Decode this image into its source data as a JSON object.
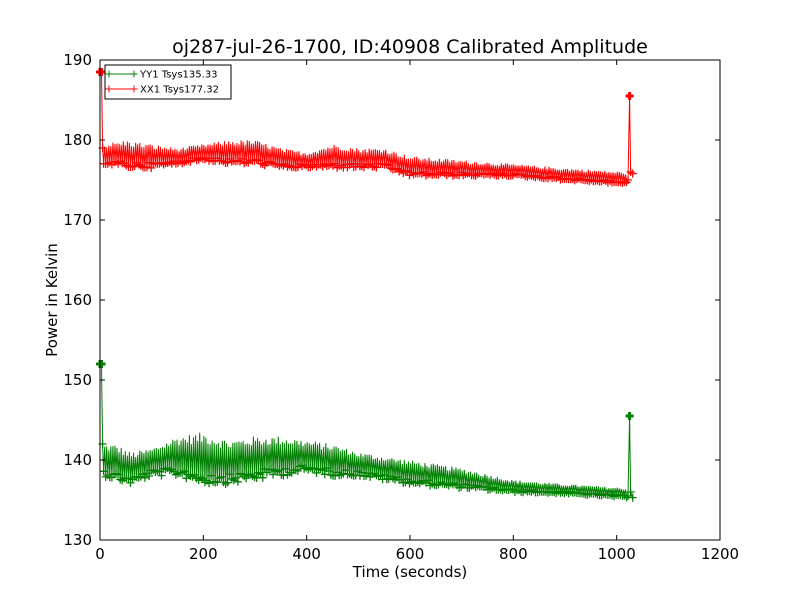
{
  "chart_data": {
    "type": "line",
    "title": "oj287-jul-26-1700, ID:40908 Calibrated Amplitude",
    "xlabel": "Time (seconds)",
    "ylabel": "Power in Kelvin",
    "xlim": [
      0,
      1200
    ],
    "ylim": [
      130,
      190
    ],
    "xticks": [
      0,
      200,
      400,
      600,
      800,
      1000,
      1200
    ],
    "yticks": [
      130,
      140,
      150,
      160,
      170,
      180,
      190
    ],
    "grid": false,
    "legend_position": "top-left",
    "marker": "plus",
    "series": [
      {
        "name": "YY1 Tsys135.33",
        "color": "#008000",
        "start": [
          [
            0,
            152
          ],
          [
            3,
            152
          ],
          [
            5,
            142
          ]
        ],
        "end": [
          [
            1022,
            135.5
          ],
          [
            1025,
            145.5
          ],
          [
            1027,
            136
          ],
          [
            1031,
            135.3
          ]
        ],
        "x_range": [
          5,
          1020
        ],
        "envelope": [
          {
            "x": 5,
            "lo": 138,
            "hi": 142
          },
          {
            "x": 30,
            "lo": 137.5,
            "hi": 142
          },
          {
            "x": 60,
            "lo": 137,
            "hi": 141
          },
          {
            "x": 100,
            "lo": 138,
            "hi": 141.5
          },
          {
            "x": 150,
            "lo": 138,
            "hi": 143
          },
          {
            "x": 200,
            "lo": 137,
            "hi": 143.5
          },
          {
            "x": 250,
            "lo": 137,
            "hi": 142.5
          },
          {
            "x": 300,
            "lo": 137.5,
            "hi": 143
          },
          {
            "x": 350,
            "lo": 138,
            "hi": 143
          },
          {
            "x": 400,
            "lo": 138.5,
            "hi": 142.5
          },
          {
            "x": 450,
            "lo": 138,
            "hi": 142
          },
          {
            "x": 500,
            "lo": 138,
            "hi": 141
          },
          {
            "x": 550,
            "lo": 137.5,
            "hi": 140.5
          },
          {
            "x": 600,
            "lo": 137,
            "hi": 140
          },
          {
            "x": 700,
            "lo": 136.5,
            "hi": 139
          },
          {
            "x": 800,
            "lo": 136,
            "hi": 137.5
          },
          {
            "x": 900,
            "lo": 135.8,
            "hi": 137
          },
          {
            "x": 1020,
            "lo": 135.3,
            "hi": 136.5
          }
        ]
      },
      {
        "name": "XX1 Tsys177.32",
        "color": "#ff0000",
        "start": [
          [
            0,
            188.5
          ],
          [
            3,
            188.5
          ],
          [
            5,
            179
          ]
        ],
        "end": [
          [
            1022,
            175
          ],
          [
            1025,
            185.5
          ],
          [
            1027,
            176
          ],
          [
            1031,
            175.8
          ]
        ],
        "x_range": [
          5,
          1020
        ],
        "envelope": [
          {
            "x": 5,
            "lo": 177,
            "hi": 179.5
          },
          {
            "x": 50,
            "lo": 176.5,
            "hi": 180
          },
          {
            "x": 100,
            "lo": 176.5,
            "hi": 179.5
          },
          {
            "x": 150,
            "lo": 177,
            "hi": 179
          },
          {
            "x": 200,
            "lo": 177.5,
            "hi": 179.5
          },
          {
            "x": 250,
            "lo": 177,
            "hi": 180
          },
          {
            "x": 300,
            "lo": 177,
            "hi": 180
          },
          {
            "x": 350,
            "lo": 176.5,
            "hi": 179
          },
          {
            "x": 400,
            "lo": 176.5,
            "hi": 178.5
          },
          {
            "x": 450,
            "lo": 176.5,
            "hi": 179.5
          },
          {
            "x": 500,
            "lo": 176.5,
            "hi": 179
          },
          {
            "x": 550,
            "lo": 176.5,
            "hi": 179
          },
          {
            "x": 600,
            "lo": 175.5,
            "hi": 178
          },
          {
            "x": 700,
            "lo": 175.5,
            "hi": 177.5
          },
          {
            "x": 800,
            "lo": 175.5,
            "hi": 177
          },
          {
            "x": 900,
            "lo": 175,
            "hi": 176.5
          },
          {
            "x": 1020,
            "lo": 174.5,
            "hi": 176
          }
        ]
      }
    ]
  }
}
